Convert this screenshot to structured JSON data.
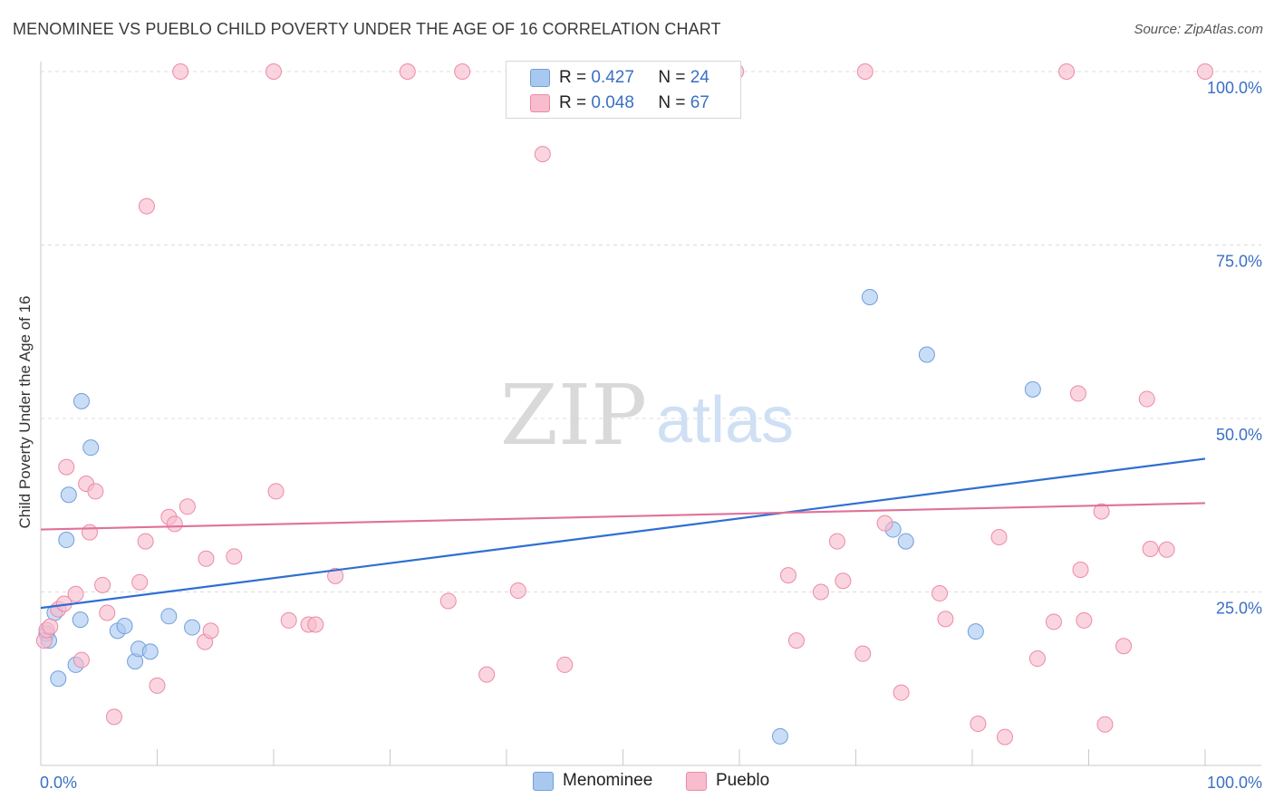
{
  "title": "MENOMINEE VS PUEBLO CHILD POVERTY UNDER THE AGE OF 16 CORRELATION CHART",
  "source": "Source: ZipAtlas.com",
  "watermark": {
    "zip": "ZIP",
    "atlas": "atlas"
  },
  "legend_top": [
    {
      "r_label": "R =",
      "r_value": "0.427",
      "n_label": "N =",
      "n_value": "24",
      "color": "#a9c8f0",
      "border": "#6f9fdc"
    },
    {
      "r_label": "R =",
      "r_value": "0.048",
      "n_label": "N =",
      "n_value": "67",
      "color": "#f7bccd",
      "border": "#ec8aa6"
    }
  ],
  "legend_bottom": [
    {
      "label": "Menominee",
      "color": "#a9c8f0",
      "border": "#6f9fdc"
    },
    {
      "label": "Pueblo",
      "color": "#f7bccd",
      "border": "#ec8aa6"
    }
  ],
  "chart_data": {
    "type": "scatter",
    "title": "MENOMINEE VS PUEBLO CHILD POVERTY UNDER THE AGE OF 16 CORRELATION CHART",
    "xlabel": "",
    "ylabel": "Child Poverty Under the Age of 16",
    "xlim": [
      0,
      100
    ],
    "ylim": [
      0,
      100
    ],
    "x_tick_labels": [
      "0.0%",
      "100.0%"
    ],
    "y_tick_labels": [
      {
        "value": 25,
        "label": "25.0%"
      },
      {
        "value": 50,
        "label": "50.0%"
      },
      {
        "value": 75,
        "label": "75.0%"
      },
      {
        "value": 100,
        "label": "100.0%"
      }
    ],
    "grid": true,
    "series": [
      {
        "name": "Menominee",
        "color": "#a9c8f0",
        "stroke": "#6f9fdc",
        "line_color": "#2f6fd1",
        "trend": [
          [
            0,
            22.7
          ],
          [
            100,
            44.2
          ]
        ],
        "points": [
          [
            0.5,
            19.0
          ],
          [
            0.7,
            18.0
          ],
          [
            1.2,
            22.0
          ],
          [
            1.5,
            12.5
          ],
          [
            2.4,
            39.0
          ],
          [
            2.2,
            32.5
          ],
          [
            3.0,
            14.5
          ],
          [
            3.4,
            21.0
          ],
          [
            3.5,
            52.5
          ],
          [
            4.3,
            45.8
          ],
          [
            6.6,
            19.4
          ],
          [
            7.2,
            20.1
          ],
          [
            8.1,
            15.0
          ],
          [
            8.4,
            16.8
          ],
          [
            9.4,
            16.4
          ],
          [
            11.0,
            21.5
          ],
          [
            13.0,
            19.9
          ],
          [
            63.5,
            4.2
          ],
          [
            71.2,
            67.5
          ],
          [
            73.2,
            34.0
          ],
          [
            74.3,
            32.3
          ],
          [
            76.1,
            59.2
          ],
          [
            80.3,
            19.3
          ],
          [
            85.2,
            54.2
          ]
        ]
      },
      {
        "name": "Pueblo",
        "color": "#f7bccd",
        "stroke": "#ec8aa6",
        "line_color": "#e0719a",
        "trend": [
          [
            0,
            34.0
          ],
          [
            100,
            37.8
          ]
        ],
        "points": [
          [
            0.3,
            18.0
          ],
          [
            0.5,
            19.5
          ],
          [
            0.8,
            20.0
          ],
          [
            1.5,
            22.5
          ],
          [
            2.0,
            23.3
          ],
          [
            2.2,
            43.0
          ],
          [
            3.0,
            24.7
          ],
          [
            3.5,
            15.2
          ],
          [
            3.9,
            40.6
          ],
          [
            4.2,
            33.6
          ],
          [
            4.7,
            39.5
          ],
          [
            5.3,
            26.0
          ],
          [
            5.7,
            22.0
          ],
          [
            6.3,
            7.0
          ],
          [
            8.5,
            26.4
          ],
          [
            9.0,
            32.3
          ],
          [
            9.1,
            80.6
          ],
          [
            10.0,
            11.5
          ],
          [
            12.0,
            100.0
          ],
          [
            11.0,
            35.8
          ],
          [
            11.5,
            34.8
          ],
          [
            12.6,
            37.3
          ],
          [
            14.1,
            17.8
          ],
          [
            14.2,
            29.8
          ],
          [
            14.6,
            19.4
          ],
          [
            16.6,
            30.1
          ],
          [
            20.0,
            100.0
          ],
          [
            20.2,
            39.5
          ],
          [
            21.3,
            20.9
          ],
          [
            23.0,
            20.3
          ],
          [
            23.6,
            20.3
          ],
          [
            25.3,
            27.3
          ],
          [
            31.5,
            100.0
          ],
          [
            35.0,
            23.7
          ],
          [
            36.2,
            100.0
          ],
          [
            38.3,
            13.1
          ],
          [
            41.0,
            25.2
          ],
          [
            43.1,
            88.1
          ],
          [
            45.0,
            14.5
          ],
          [
            59.7,
            100.0
          ],
          [
            64.2,
            27.4
          ],
          [
            64.9,
            18.0
          ],
          [
            67.0,
            25.0
          ],
          [
            68.4,
            32.3
          ],
          [
            68.9,
            26.6
          ],
          [
            70.6,
            16.1
          ],
          [
            70.8,
            100.0
          ],
          [
            72.5,
            34.9
          ],
          [
            73.9,
            10.5
          ],
          [
            77.2,
            24.8
          ],
          [
            77.7,
            21.1
          ],
          [
            80.5,
            6.0
          ],
          [
            82.3,
            32.9
          ],
          [
            82.8,
            4.1
          ],
          [
            85.6,
            15.4
          ],
          [
            87.0,
            20.7
          ],
          [
            88.1,
            100.0
          ],
          [
            89.1,
            53.6
          ],
          [
            89.3,
            28.2
          ],
          [
            89.6,
            20.9
          ],
          [
            91.1,
            36.6
          ],
          [
            91.4,
            5.9
          ],
          [
            93.0,
            17.2
          ],
          [
            95.0,
            52.8
          ],
          [
            95.3,
            31.2
          ],
          [
            96.7,
            31.1
          ],
          [
            100.0,
            100.0
          ]
        ]
      }
    ]
  }
}
